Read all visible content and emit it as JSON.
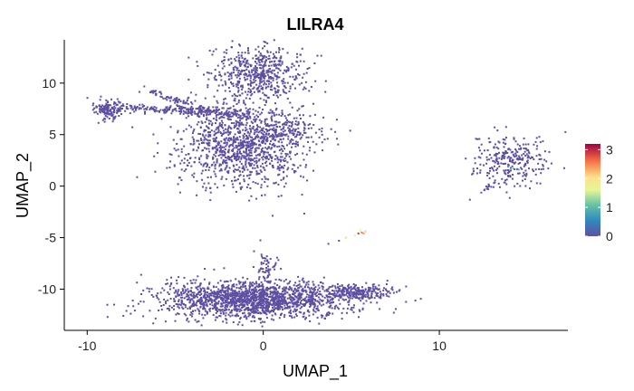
{
  "chart_data": {
    "type": "scatter",
    "title": "LILRA4",
    "xlabel": "UMAP_1",
    "ylabel": "UMAP_2",
    "xlim": [
      -11.3,
      17.3
    ],
    "ylim": [
      -14.0,
      14.2
    ],
    "xticks": [
      -10,
      0,
      10
    ],
    "yticks": [
      -10,
      -5,
      0,
      5,
      10
    ],
    "xtick_labels": [
      "-10",
      "0",
      "10"
    ],
    "ytick_labels": [
      "-10",
      "-5",
      "0",
      "5",
      "10"
    ],
    "grid": false,
    "legend": {
      "placement": "right",
      "type": "colorbar",
      "ticks": [
        0,
        1,
        2,
        3
      ],
      "tick_labels": [
        "0",
        "1",
        "2",
        "3"
      ],
      "range": [
        0,
        3.2
      ]
    },
    "colors": {
      "low": "#5E4FA2",
      "mid_low": "#3288BD",
      "mid": "#66C2A5",
      "mid_high": "#E6F598",
      "high_mid": "#FEE08B",
      "high": "#F46D43",
      "max": "#9E0142"
    },
    "clusters": [
      {
        "cx": -0.3,
        "cy": 10.9,
        "sx": 1.3,
        "sy": 1.3,
        "n": 550,
        "value": 0
      },
      {
        "cx": -8.8,
        "cy": 7.4,
        "sx": 0.45,
        "sy": 0.55,
        "n": 130,
        "value": 0
      },
      {
        "cx": -1.2,
        "cy": 4.0,
        "sx": 1.8,
        "sy": 2.0,
        "n": 1100,
        "value": 0
      },
      {
        "cx": 1.5,
        "cy": 5.4,
        "sx": 0.9,
        "sy": 0.7,
        "n": 120,
        "value": 0
      },
      {
        "cx": 14.0,
        "cy": 2.6,
        "sx": 1.0,
        "sy": 1.3,
        "n": 280,
        "value": 0
      },
      {
        "cx": -0.6,
        "cy": -11.0,
        "sx": 2.6,
        "sy": 0.9,
        "n": 1700,
        "value": 0
      },
      {
        "cx": 5.2,
        "cy": -10.3,
        "sx": 1.1,
        "sy": 0.35,
        "n": 260,
        "value": 0
      },
      {
        "cx": 0.2,
        "cy": -8.0,
        "sx": 0.35,
        "sy": 0.9,
        "n": 60,
        "value": 0
      }
    ],
    "streams": [
      {
        "from": [
          -8.5,
          7.7
        ],
        "to": [
          -3.2,
          7.2
        ],
        "n": 160,
        "spread": 0.35,
        "value": 0
      },
      {
        "from": [
          -6.5,
          9.3
        ],
        "to": [
          -4.5,
          8.0
        ],
        "n": 60,
        "spread": 0.25,
        "value": 0
      },
      {
        "from": [
          -4.0,
          7.5
        ],
        "to": [
          -1.0,
          6.8
        ],
        "n": 120,
        "spread": 0.45,
        "value": 0
      },
      {
        "from": [
          13.2,
          0.6
        ],
        "to": [
          12.5,
          -0.8
        ],
        "n": 12,
        "spread": 0.12,
        "value": 0
      }
    ],
    "points": [
      {
        "x": 5.6,
        "y": -4.5,
        "value": 2.6
      },
      {
        "x": 5.8,
        "y": -4.4,
        "value": 2.2
      },
      {
        "x": 5.4,
        "y": -4.6,
        "value": 2.9
      },
      {
        "x": 5.5,
        "y": -4.3,
        "value": 1.9
      },
      {
        "x": 5.7,
        "y": -4.6,
        "value": 2.4
      },
      {
        "x": 5.2,
        "y": -4.8,
        "value": 1.6
      },
      {
        "x": 4.7,
        "y": -5.0,
        "value": 2.1
      },
      {
        "x": 3.7,
        "y": -5.6,
        "value": 0
      },
      {
        "x": 4.3,
        "y": -5.3,
        "value": 0
      },
      {
        "x": 14.2,
        "y": 1.7,
        "value": 0.9
      },
      {
        "x": 14.5,
        "y": 1.6,
        "value": 0.8
      },
      {
        "x": 13.9,
        "y": 1.9,
        "value": 0.7
      }
    ]
  }
}
